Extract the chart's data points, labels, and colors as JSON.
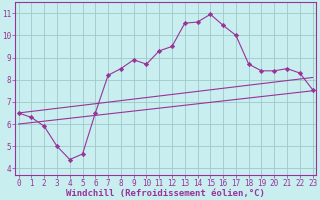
{
  "background_color": "#c8eef0",
  "grid_color": "#a0c8c8",
  "line_color": "#993399",
  "marker_color": "#993399",
  "xlabel": "Windchill (Refroidissement éolien,°C)",
  "xlabel_color": "#993399",
  "ylabel_ticks": [
    4,
    5,
    6,
    7,
    8,
    9,
    10,
    11
  ],
  "xticks": [
    0,
    1,
    2,
    3,
    4,
    5,
    6,
    7,
    8,
    9,
    10,
    11,
    12,
    13,
    14,
    15,
    16,
    17,
    18,
    19,
    20,
    21,
    22,
    23
  ],
  "xlim": [
    -0.3,
    23.3
  ],
  "ylim": [
    3.7,
    11.5
  ],
  "series1_x": [
    0,
    1,
    2,
    3,
    4,
    5,
    6,
    7,
    8,
    9,
    10,
    11,
    12,
    13,
    14,
    15,
    16,
    17,
    18,
    19,
    20,
    21,
    22,
    23
  ],
  "series1_y": [
    6.5,
    6.3,
    5.9,
    5.0,
    4.4,
    4.65,
    6.5,
    8.2,
    8.5,
    8.9,
    8.7,
    9.3,
    9.5,
    10.55,
    10.6,
    10.95,
    10.45,
    10.0,
    8.7,
    8.4,
    8.4,
    8.5,
    8.3,
    7.55
  ],
  "series2_x": [
    0,
    23
  ],
  "series2_y": [
    6.5,
    8.1
  ],
  "series3_x": [
    0,
    23
  ],
  "series3_y": [
    6.0,
    7.5
  ],
  "tick_fontsize": 5.5,
  "xlabel_fontsize": 6.5
}
